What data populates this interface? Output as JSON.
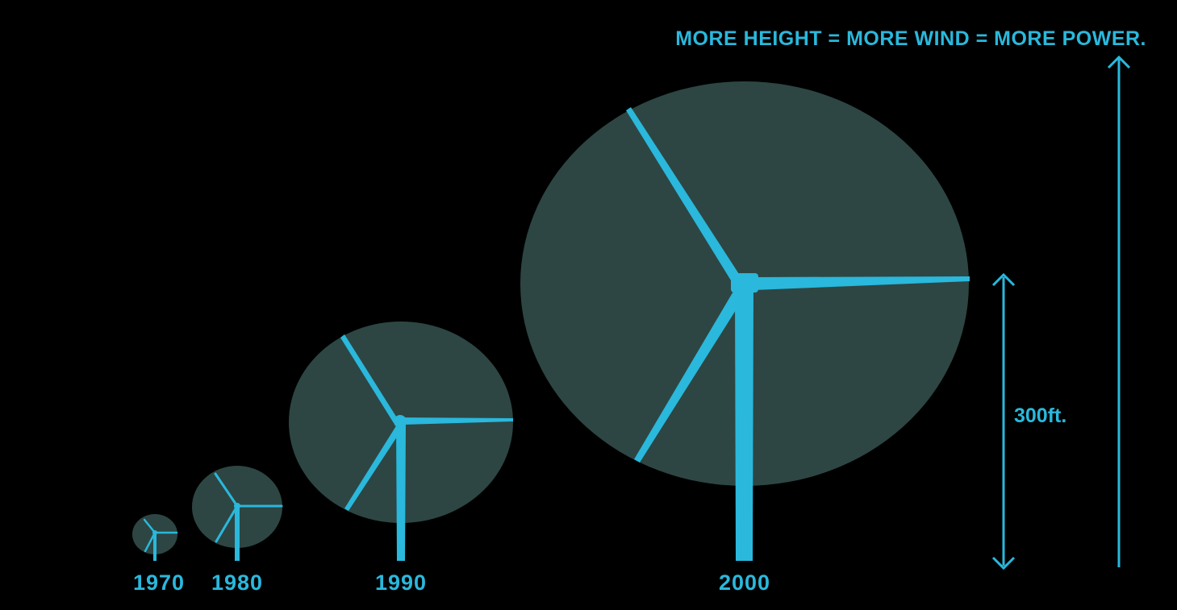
{
  "headline": "MORE HEIGHT = MORE WIND = MORE POWER.",
  "height_label": "300ft.",
  "colors": {
    "background": "#000000",
    "accent": "#2ab8dc",
    "rotor_disc": "#2f4a47"
  },
  "turbines": [
    {
      "year": "1970"
    },
    {
      "year": "1980"
    },
    {
      "year": "1990"
    },
    {
      "year": "2000"
    }
  ]
}
